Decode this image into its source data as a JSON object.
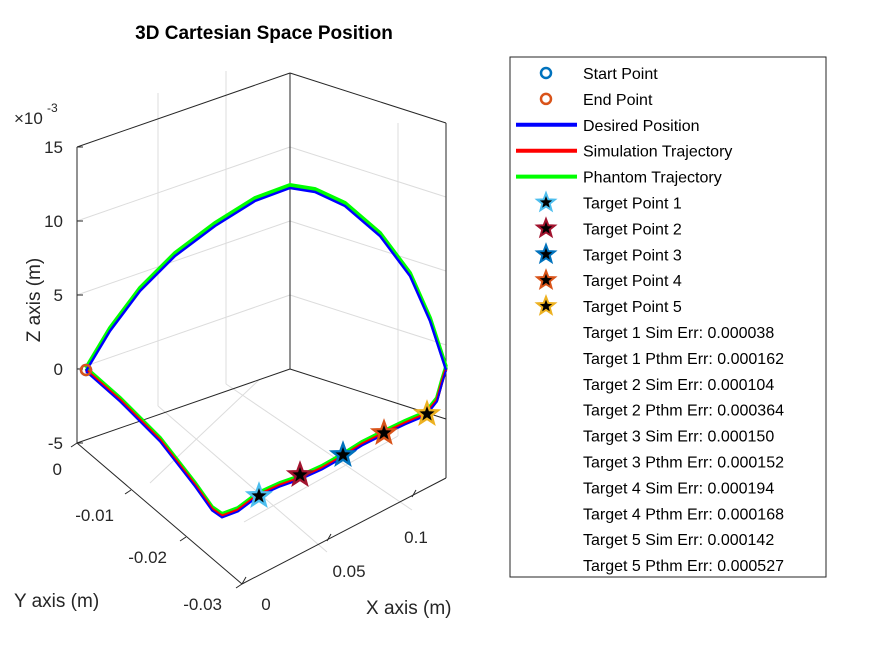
{
  "chart_data": {
    "type": "line",
    "title": "3D Cartesian Space Position",
    "xlabel": "X axis (m)",
    "ylabel": "Y axis (m)",
    "zlabel": "Z axis (m)",
    "z_exponent": "-3",
    "xlim": [
      0,
      0.13
    ],
    "ylim": [
      -0.03,
      0
    ],
    "zlim": [
      -5,
      15
    ],
    "x_ticks": [
      "0",
      "0.05",
      "0.1"
    ],
    "y_ticks": [
      "0",
      "-0.01",
      "-0.02",
      "-0.03"
    ],
    "z_ticks": [
      "15",
      "10",
      "5",
      "0",
      "-5"
    ],
    "grid": true,
    "legend_position": "right",
    "colors": {
      "start": "#0072BD",
      "end": "#D95319",
      "desired": "#0000FF",
      "simulation": "#FF0000",
      "phantom": "#00FF00"
    },
    "series": [
      {
        "name": "Start Point",
        "kind": "marker"
      },
      {
        "name": "End Point",
        "kind": "marker"
      },
      {
        "name": "Desired Position",
        "kind": "line"
      },
      {
        "name": "Simulation Trajectory",
        "kind": "line"
      },
      {
        "name": "Phantom Trajectory",
        "kind": "line"
      }
    ],
    "targets": [
      {
        "name": "Target Point 1",
        "color": "#4DBEEE"
      },
      {
        "name": "Target Point 2",
        "color": "#A2142F"
      },
      {
        "name": "Target Point 3",
        "color": "#0072BD"
      },
      {
        "name": "Target Point 4",
        "color": "#D95319"
      },
      {
        "name": "Target Point 5",
        "color": "#EDB120"
      }
    ],
    "errors": [
      "Target 1 Sim Err: 0.000038",
      "Target 1 Pthm Err: 0.000162",
      "Target 2 Sim Err: 0.000104",
      "Target 2 Pthm Err: 0.000364",
      "Target 3 Sim Err: 0.000150",
      "Target 3 Pthm Err: 0.000152",
      "Target 4 Sim Err: 0.000194",
      "Target 4 Pthm Err: 0.000168",
      "Target 5 Sim Err: 0.000142",
      "Target 5 Pthm Err: 0.000527"
    ]
  }
}
